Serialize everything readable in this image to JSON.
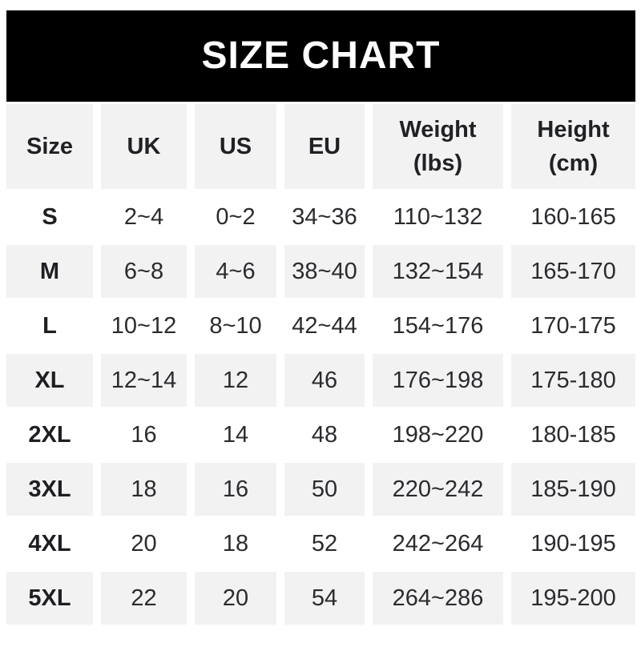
{
  "banner": {
    "title": "SIZE CHART"
  },
  "colors": {
    "banner_bg": "#000000",
    "banner_text": "#ffffff",
    "row_alt_bg": "#f2f2f3",
    "text": "#202124"
  },
  "table": {
    "columns": [
      "Size",
      "UK",
      "US",
      "EU",
      "Weight\n(lbs)",
      "Height\n(cm)"
    ],
    "rows": [
      {
        "size": "S",
        "uk": "2~4",
        "us": "0~2",
        "eu": "34~36",
        "weight": "110~132",
        "height": "160-165"
      },
      {
        "size": "M",
        "uk": "6~8",
        "us": "4~6",
        "eu": "38~40",
        "weight": "132~154",
        "height": "165-170"
      },
      {
        "size": "L",
        "uk": "10~12",
        "us": "8~10",
        "eu": "42~44",
        "weight": "154~176",
        "height": "170-175"
      },
      {
        "size": "XL",
        "uk": "12~14",
        "us": "12",
        "eu": "46",
        "weight": "176~198",
        "height": "175-180"
      },
      {
        "size": "2XL",
        "uk": "16",
        "us": "14",
        "eu": "48",
        "weight": "198~220",
        "height": "180-185"
      },
      {
        "size": "3XL",
        "uk": "18",
        "us": "16",
        "eu": "50",
        "weight": "220~242",
        "height": "185-190"
      },
      {
        "size": "4XL",
        "uk": "20",
        "us": "18",
        "eu": "52",
        "weight": "242~264",
        "height": "190-195"
      },
      {
        "size": "5XL",
        "uk": "22",
        "us": "20",
        "eu": "54",
        "weight": "264~286",
        "height": "195-200"
      }
    ]
  }
}
